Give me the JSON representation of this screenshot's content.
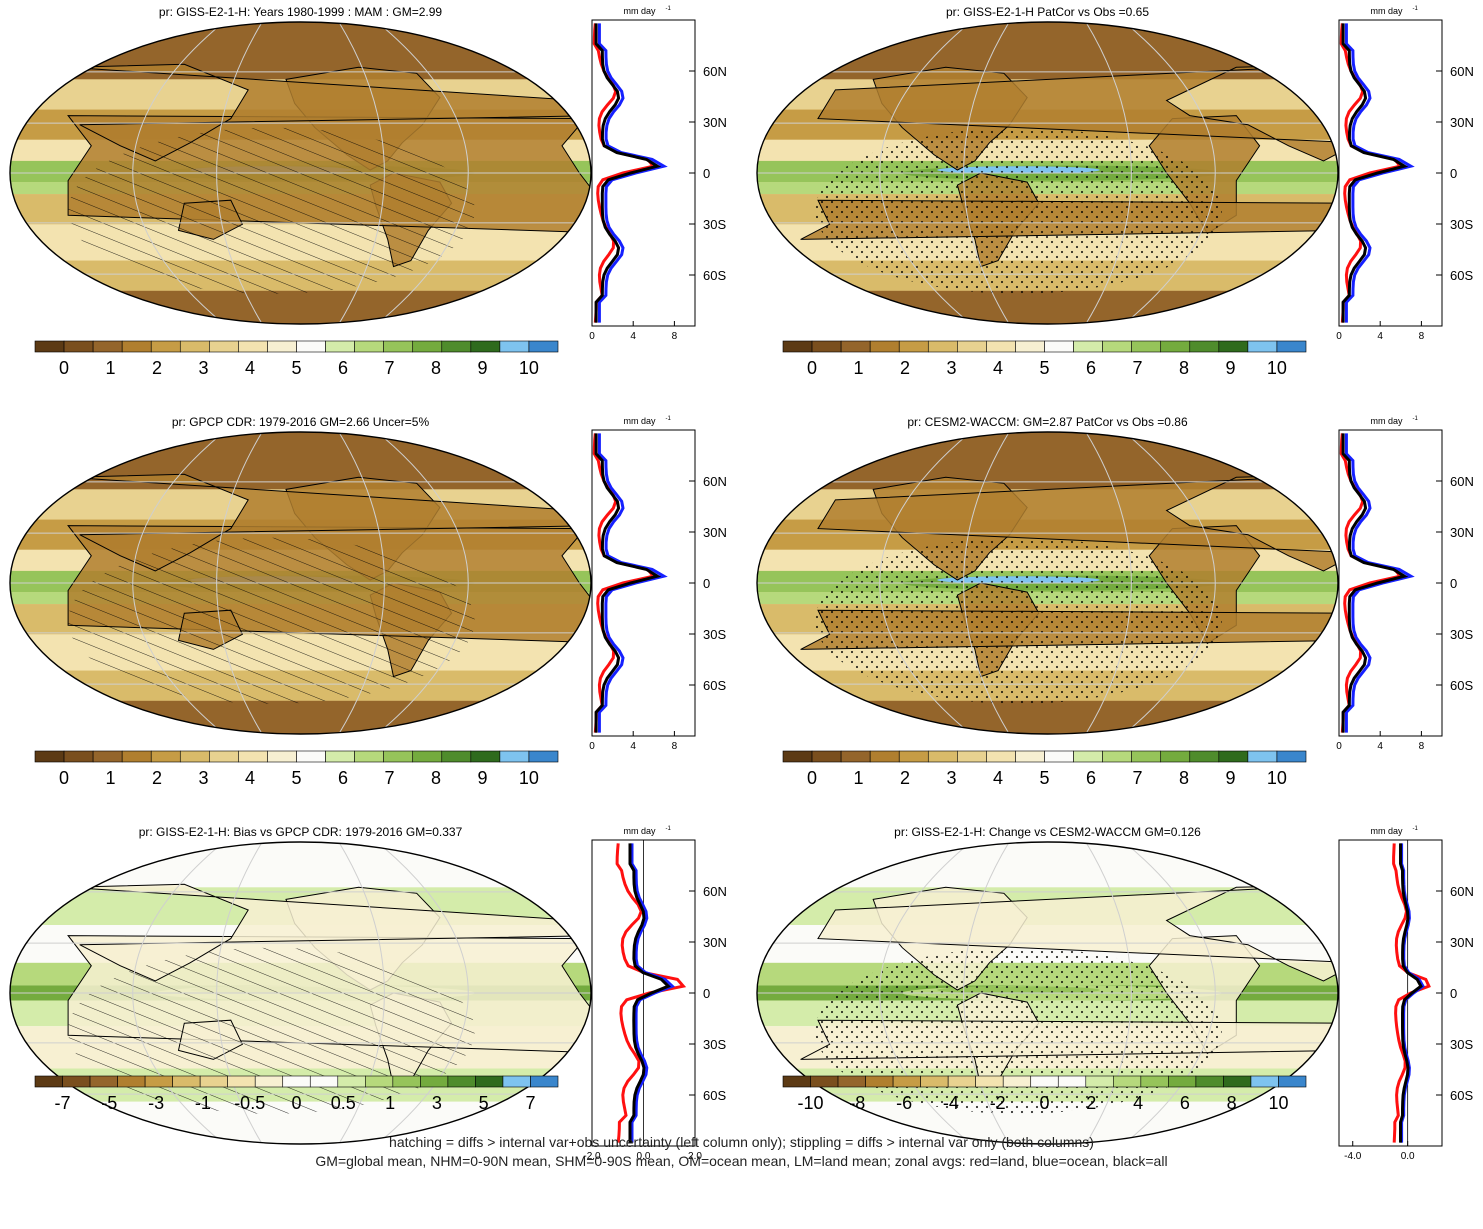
{
  "palettes": {
    "precip": [
      "#5c3a14",
      "#7a4f1e",
      "#94652b",
      "#b07f2f",
      "#c69c45",
      "#d9bb6a",
      "#e8d290",
      "#f3e3b0",
      "#f7f0d2",
      "#fbfbf8",
      "#d4ecaa",
      "#b6d97c",
      "#96c45a",
      "#74ab3e",
      "#4f8c2c",
      "#2f6b1d",
      "#7ec3ef",
      "#3a86cc"
    ],
    "diff": [
      "#5c3a14",
      "#7a4f1e",
      "#94652b",
      "#b07f2f",
      "#c69c45",
      "#d9bb6a",
      "#e8d290",
      "#f3e3b0",
      "#f7f0d2",
      "#fbfbf8",
      "#fbfbf8",
      "#d4ecaa",
      "#b6d97c",
      "#96c45a",
      "#74ab3e",
      "#4f8c2c",
      "#2f6b1d",
      "#7ec3ef",
      "#3a86cc"
    ],
    "line_colors": {
      "land": "#ff1010",
      "ocean": "#1520ff",
      "all": "#000000"
    }
  },
  "panels": [
    {
      "title": "pr: GISS-E2-1-H: Years 1980-1999 : MAM : GM=2.99",
      "colorbar_labels": [
        "0",
        "1",
        "2",
        "3",
        "4",
        "5",
        "6",
        "7",
        "8",
        "9",
        "10"
      ],
      "palette": "precip",
      "profile_units": "mm day",
      "profile_units_sup": "-1",
      "profile_xticks": [
        "0",
        "4",
        "8"
      ],
      "lat_labels": [
        "60N",
        "30N",
        "0",
        "30S",
        "60S"
      ],
      "overlay": "hatch"
    },
    {
      "title": "pr: GISS-E2-1-H PatCor vs Obs =0.65",
      "colorbar_labels": [
        "0",
        "1",
        "2",
        "3",
        "4",
        "5",
        "6",
        "7",
        "8",
        "9",
        "10"
      ],
      "palette": "precip",
      "profile_units": "mm day",
      "profile_units_sup": "-1",
      "profile_xticks": [
        "0",
        "4",
        "8"
      ],
      "lat_labels": [
        "60N",
        "30N",
        "0",
        "30S",
        "60S"
      ],
      "overlay": "stipple"
    },
    {
      "title": "pr: GPCP CDR: 1979-2016 GM=2.66 Uncer=5%",
      "colorbar_labels": [
        "0",
        "1",
        "2",
        "3",
        "4",
        "5",
        "6",
        "7",
        "8",
        "9",
        "10"
      ],
      "palette": "precip",
      "profile_units": "mm day",
      "profile_units_sup": "-1",
      "profile_xticks": [
        "0",
        "4",
        "8"
      ],
      "lat_labels": [
        "60N",
        "30N",
        "0",
        "30S",
        "60S"
      ],
      "overlay": "hatch"
    },
    {
      "title": "pr: CESM2-WACCM: GM=2.87 PatCor vs Obs =0.86",
      "colorbar_labels": [
        "0",
        "1",
        "2",
        "3",
        "4",
        "5",
        "6",
        "7",
        "8",
        "9",
        "10"
      ],
      "palette": "precip",
      "profile_units": "mm day",
      "profile_units_sup": "-1",
      "profile_xticks": [
        "0",
        "4",
        "8"
      ],
      "lat_labels": [
        "60N",
        "30N",
        "0",
        "30S",
        "60S"
      ],
      "overlay": "stipple"
    },
    {
      "title": "pr: GISS-E2-1-H: Bias vs GPCP CDR: 1979-2016 GM=0.337",
      "colorbar_labels": [
        "-7",
        "-5",
        "-3",
        "-1",
        "-0.5",
        "0",
        "0.5",
        "1",
        "3",
        "5",
        "7"
      ],
      "palette": "diff",
      "profile_units": "mm day",
      "profile_units_sup": "-1",
      "profile_xticks": [
        "-2.0",
        "0.0",
        "2.0"
      ],
      "lat_labels": [
        "60N",
        "30N",
        "0",
        "30S",
        "60S"
      ],
      "overlay": "hatch"
    },
    {
      "title": "pr: GISS-E2-1-H: Change vs CESM2-WACCM GM=0.126",
      "colorbar_labels": [
        "-10",
        "-8",
        "-6",
        "-4",
        "-2",
        "0",
        "2",
        "4",
        "6",
        "8",
        "10"
      ],
      "palette": "diff",
      "profile_units": "mm day",
      "profile_units_sup": "-1",
      "profile_xticks": [
        "-4.0",
        "0.0"
      ],
      "lat_labels": [
        "60N",
        "30N",
        "0",
        "30S",
        "60S"
      ],
      "overlay": "stipple"
    }
  ],
  "footer": {
    "line1": "hatching = diffs > internal var+obs uncertainty (left column only); stippling = diffs > internal var only (both columns)",
    "line2": "GM=global mean, NHM=0-90N mean, SHM=0-90S mean, OM=ocean mean, LM=land mean; zonal avgs: red=land, blue=ocean, black=all"
  }
}
